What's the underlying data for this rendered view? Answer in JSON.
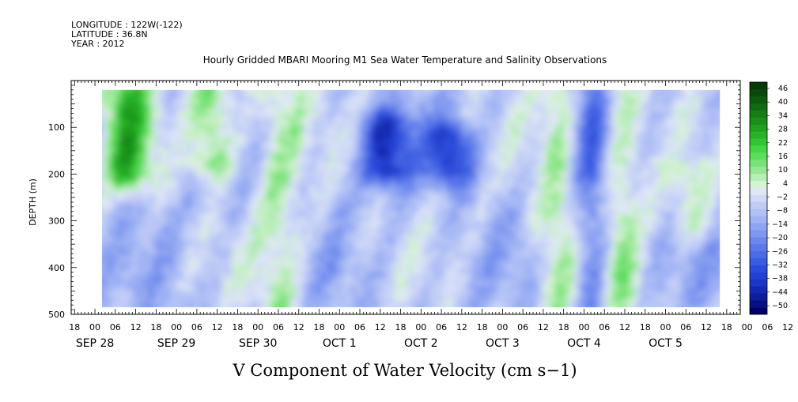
{
  "header": {
    "longitude": "LONGITUDE : 122W(-122)",
    "latitude": "LATITUDE : 36.8N",
    "year": "YEAR : 2012"
  },
  "title": "Hourly Gridded MBARI Mooring M1 Sea Water Temperature and Salinity Observations",
  "variable_label": "V Component of Water Velocity (cm s−1)",
  "chart_data": {
    "type": "heatmap",
    "title": "Hourly Gridded MBARI Mooring M1 Sea Water Temperature and Salinity Observations",
    "xlabel": "",
    "ylabel": "DEPTH (m)",
    "x_range": [
      "2012-09-27T17:00",
      "2012-10-05T22:00"
    ],
    "data_time_range": [
      "2012-09-28T00:00",
      "2012-10-05T16:00"
    ],
    "y_range": [
      500,
      0
    ],
    "depth_range_observed": [
      20,
      485
    ],
    "y_ticks": [
      100,
      200,
      300,
      400,
      500
    ],
    "y_tick_labels": [
      "100",
      "200",
      "300",
      "400",
      "500"
    ],
    "x_hour_labels": [
      "18",
      "00",
      "06",
      "12",
      "18",
      "00",
      "06",
      "12",
      "18",
      "00",
      "06",
      "12",
      "18",
      "00",
      "06",
      "12",
      "18",
      "00",
      "06",
      "12",
      "18",
      "00",
      "06",
      "12",
      "18",
      "00",
      "06",
      "12",
      "18",
      "00",
      "06",
      "12",
      "18",
      "00",
      "06",
      "12"
    ],
    "x_day_labels": [
      {
        "label": "SEP 28",
        "time": "2012-09-28T00:00"
      },
      {
        "label": "SEP 29",
        "time": "2012-09-29T00:00"
      },
      {
        "label": "SEP 30",
        "time": "2012-09-30T00:00"
      },
      {
        "label": "OCT  1",
        "time": "2012-10-01T00:00"
      },
      {
        "label": "OCT  2",
        "time": "2012-10-02T00:00"
      },
      {
        "label": "OCT  3",
        "time": "2012-10-03T00:00"
      },
      {
        "label": "OCT  4",
        "time": "2012-10-04T00:00"
      },
      {
        "label": "OCT  5",
        "time": "2012-10-05T00:00"
      }
    ],
    "colorbar": {
      "labels": [
        "46",
        "40",
        "34",
        "28",
        "22",
        "16",
        "10",
        "4",
        "−2",
        "−8",
        "−14",
        "−20",
        "−26",
        "−32",
        "−38",
        "−44",
        "−50"
      ],
      "levels": [
        -50,
        -47,
        -44,
        -41,
        -38,
        -35,
        -32,
        -29,
        -26,
        -23,
        -20,
        -17,
        -14,
        -11,
        -8,
        -5,
        -2,
        1,
        4,
        7,
        10,
        13,
        16,
        19,
        22,
        25,
        28,
        31,
        34,
        37,
        40,
        43,
        46,
        49
      ],
      "colors": [
        "#000066",
        "#07107f",
        "#0d1e99",
        "#1429b0",
        "#1b35c4",
        "#2241d3",
        "#2c4ddc",
        "#3a5be2",
        "#4b6ae6",
        "#5b79ea",
        "#6c88ed",
        "#7e97f0",
        "#8fa5f2",
        "#a0b3f4",
        "#b1c0f5",
        "#c0ccf6",
        "#d0d9f8",
        "#dfe7f7",
        "#d6f2d4",
        "#b8eeb5",
        "#97e894",
        "#7ae377",
        "#5ddd5b",
        "#44d544",
        "#33c433",
        "#27b327",
        "#1fa11f",
        "#198f19",
        "#147d14",
        "#106c10",
        "#0c5b0c",
        "#094a09",
        "#063a06"
      ]
    },
    "features": [
      {
        "type": "positive",
        "center_time": "2012-09-28T09:00",
        "depth": [
          20,
          190
        ],
        "peak": 30
      },
      {
        "type": "positive",
        "center_time": "2012-09-29T10:00",
        "depth": [
          20,
          170
        ],
        "peak": 22
      },
      {
        "type": "positive",
        "center_time": "2012-09-30T06:00",
        "depth": [
          20,
          485
        ],
        "peak": 14
      },
      {
        "type": "negative",
        "center_time": "2012-10-01T13:00",
        "depth": [
          100,
          180
        ],
        "peak": -30
      },
      {
        "type": "negative",
        "center_time": "2012-10-02T08:00",
        "depth": [
          120,
          180
        ],
        "peak": -28
      },
      {
        "type": "positive",
        "center_time": "2012-10-03T17:00",
        "depth": [
          20,
          485
        ],
        "peak": 18
      },
      {
        "type": "positive",
        "center_time": "2012-10-04T09:00",
        "depth": [
          20,
          485
        ],
        "peak": 20
      },
      {
        "type": "negative",
        "center_time": "2012-10-04T02:00",
        "depth": [
          20,
          485
        ],
        "peak": -24
      },
      {
        "type": "positive",
        "center_time": "2012-10-05T06:00",
        "depth": [
          200,
          300
        ],
        "peak": 12
      }
    ]
  }
}
